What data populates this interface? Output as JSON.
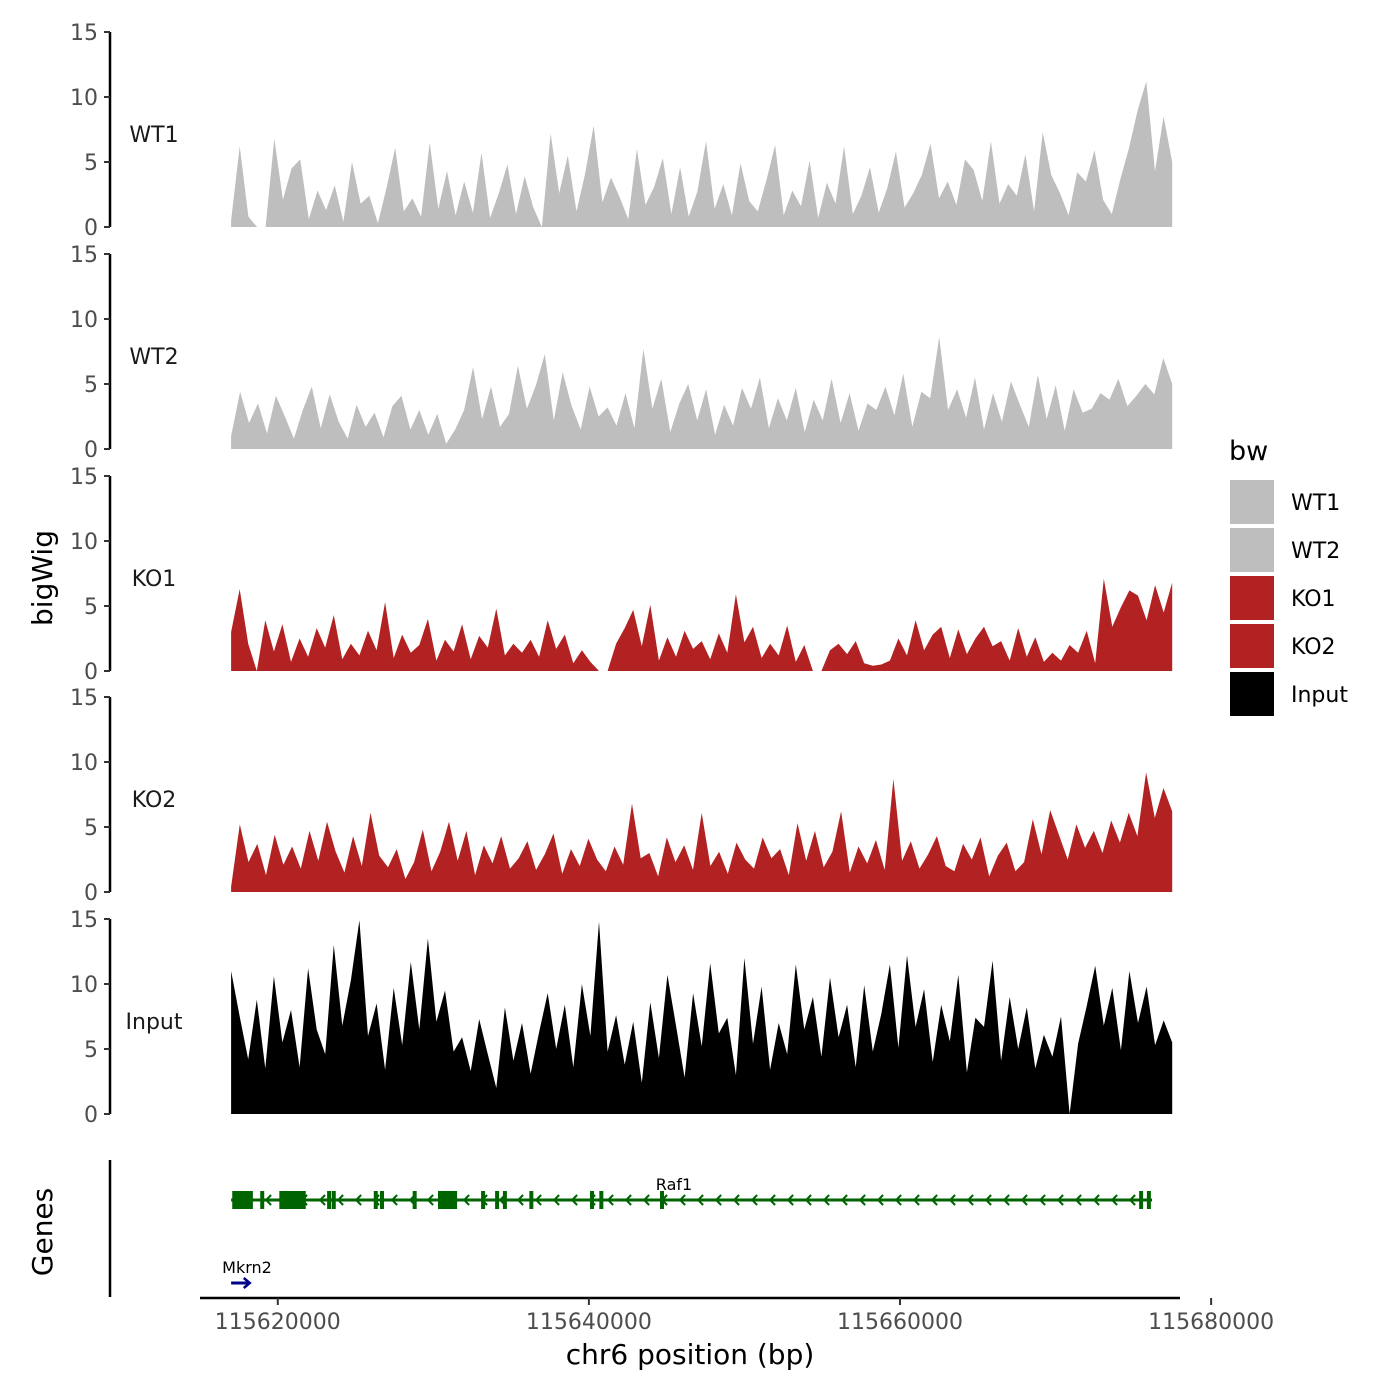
{
  "chart_data": {
    "type": "area",
    "ylabel": "bigWig",
    "xlabel": "chr6 position (bp)",
    "ylim": [
      0,
      15
    ],
    "y_ticks": [
      0,
      5,
      10,
      15
    ],
    "xlim": [
      115615000,
      115678000
    ],
    "x_ticks": [
      115620000,
      115640000,
      115660000,
      115680000
    ],
    "x_tick_labels": [
      "115620000",
      "115640000",
      "115660000",
      "115680000"
    ],
    "data_range": [
      115617000,
      115677500
    ],
    "series": [
      {
        "name": "WT1",
        "color": "#bebebe",
        "values": [
          0.5,
          6.2,
          0.8,
          0,
          0,
          6.8,
          2.1,
          4.5,
          5.2,
          0.6,
          2.8,
          1.3,
          3.2,
          0.4,
          5.0,
          1.8,
          2.4,
          0.3,
          3.0,
          6.1,
          1.2,
          2.2,
          0.8,
          6.5,
          1.4,
          4.3,
          0.9,
          3.5,
          1.1,
          5.7,
          0.7,
          2.6,
          4.8,
          1.0,
          3.9,
          1.5,
          0,
          7.2,
          2.6,
          5.5,
          1.2,
          4.1,
          7.8,
          1.9,
          3.8,
          2.3,
          0.6,
          6.0,
          1.7,
          3.1,
          5.3,
          1.0,
          4.6,
          0.8,
          2.7,
          6.6,
          1.4,
          3.3,
          0.9,
          4.9,
          2.0,
          1.2,
          3.6,
          6.3,
          0.9,
          2.8,
          1.6,
          5.1,
          0.7,
          3.4,
          1.8,
          6.2,
          1.0,
          2.4,
          4.6,
          1.1,
          3.0,
          5.8,
          1.5,
          2.6,
          4.0,
          6.4,
          2.2,
          3.5,
          1.7,
          5.2,
          4.4,
          2.0,
          6.6,
          1.8,
          3.3,
          2.4,
          5.6,
          1.2,
          7.3,
          4.0,
          2.6,
          0.9,
          4.2,
          3.5,
          5.9,
          2.1,
          1.0,
          3.7,
          6.1,
          9.0,
          11.2,
          4.3,
          8.5,
          5.0
        ]
      },
      {
        "name": "WT2",
        "color": "#bebebe",
        "values": [
          1.0,
          4.4,
          2.0,
          3.5,
          1.2,
          4.1,
          2.5,
          0.8,
          3.0,
          4.8,
          1.6,
          4.2,
          2.1,
          0.8,
          3.4,
          1.7,
          2.8,
          0.9,
          3.3,
          4.1,
          1.5,
          3.0,
          1.1,
          2.7,
          0.4,
          1.5,
          3.0,
          6.3,
          2.3,
          4.8,
          1.7,
          2.7,
          6.4,
          3.1,
          4.9,
          7.3,
          2.2,
          5.9,
          3.3,
          1.5,
          4.8,
          2.5,
          3.2,
          1.8,
          4.3,
          1.6,
          7.7,
          3.1,
          5.4,
          1.3,
          3.5,
          5.0,
          2.2,
          4.6,
          1.1,
          3.4,
          1.8,
          4.7,
          3.1,
          5.5,
          1.6,
          3.9,
          2.2,
          4.7,
          1.3,
          3.8,
          2.2,
          5.4,
          2.0,
          4.3,
          1.4,
          3.5,
          3.0,
          4.8,
          2.6,
          5.8,
          1.7,
          4.4,
          3.9,
          8.6,
          3.0,
          4.6,
          2.4,
          5.5,
          1.5,
          4.3,
          2.1,
          5.2,
          3.4,
          1.7,
          5.7,
          2.3,
          4.9,
          1.4,
          4.6,
          2.8,
          3.1,
          4.3,
          3.8,
          5.4,
          3.3,
          4.1,
          5.0,
          4.2,
          7.0,
          5.0
        ]
      },
      {
        "name": "KO1",
        "color": "#b22222",
        "values": [
          3.0,
          6.3,
          2.1,
          0,
          3.9,
          1.5,
          3.6,
          0.7,
          2.5,
          1.1,
          3.3,
          1.8,
          4.3,
          0.9,
          2.1,
          1.2,
          3.1,
          1.6,
          5.3,
          1.0,
          2.8,
          1.4,
          2.0,
          4.0,
          0.8,
          2.4,
          1.5,
          3.6,
          0.9,
          2.7,
          1.8,
          4.8,
          1.2,
          2.1,
          1.4,
          2.4,
          1.1,
          3.9,
          1.7,
          2.8,
          0.6,
          1.6,
          0.7,
          0,
          0,
          2.1,
          3.3,
          4.7,
          1.9,
          5.1,
          0.8,
          2.6,
          1.1,
          3.1,
          1.7,
          2.3,
          0.9,
          2.9,
          1.4,
          5.9,
          2.2,
          3.4,
          1.0,
          2.1,
          1.2,
          3.5,
          0.7,
          2.0,
          0,
          0,
          1.6,
          2.1,
          1.3,
          2.3,
          0.6,
          0.4,
          0.5,
          0.8,
          2.5,
          1.2,
          3.9,
          1.6,
          2.8,
          3.4,
          1.0,
          3.2,
          1.3,
          2.5,
          3.4,
          1.9,
          2.3,
          0.8,
          3.3,
          1.1,
          2.6,
          0.7,
          1.4,
          0.8,
          2.0,
          1.4,
          3.1,
          0.6,
          7.1,
          3.4,
          4.9,
          6.2,
          5.8,
          3.9,
          6.6,
          4.5,
          6.8
        ]
      },
      {
        "name": "KO2",
        "color": "#b22222",
        "values": [
          0.4,
          5.2,
          2.3,
          3.7,
          1.3,
          4.4,
          2.1,
          3.5,
          1.8,
          4.7,
          2.4,
          5.4,
          3.1,
          1.5,
          4.3,
          2.0,
          6.1,
          2.8,
          1.9,
          3.3,
          1.0,
          2.3,
          4.8,
          1.6,
          3.1,
          5.4,
          2.4,
          4.7,
          1.3,
          3.6,
          2.2,
          4.3,
          1.8,
          2.6,
          3.9,
          1.7,
          2.9,
          4.5,
          1.4,
          3.3,
          2.0,
          4.1,
          2.5,
          1.6,
          3.5,
          2.1,
          6.8,
          2.6,
          3.0,
          1.2,
          4.2,
          2.3,
          3.6,
          1.7,
          6.1,
          2.0,
          3.1,
          1.4,
          3.8,
          2.5,
          1.8,
          4.2,
          2.6,
          3.3,
          1.3,
          5.3,
          2.4,
          4.7,
          1.9,
          3.1,
          6.2,
          1.5,
          3.5,
          2.2,
          4.0,
          1.7,
          8.7,
          2.4,
          3.9,
          1.8,
          2.9,
          4.3,
          2.0,
          1.6,
          3.7,
          2.5,
          4.2,
          1.2,
          2.8,
          3.8,
          1.6,
          2.3,
          5.6,
          2.9,
          6.3,
          4.4,
          2.5,
          5.2,
          3.4,
          4.7,
          3.0,
          5.5,
          3.8,
          6.1,
          4.3,
          9.2,
          5.7,
          8.0,
          6.2
        ]
      },
      {
        "name": "Input",
        "color": "#000000",
        "values": [
          11.0,
          7.5,
          4.2,
          8.8,
          3.5,
          10.6,
          5.5,
          8.0,
          3.6,
          11.2,
          6.5,
          4.6,
          13.0,
          6.8,
          10.3,
          14.9,
          6.0,
          8.5,
          3.4,
          9.7,
          5.3,
          11.7,
          6.5,
          13.5,
          7.1,
          9.5,
          4.8,
          5.9,
          3.3,
          7.3,
          4.6,
          2.0,
          8.2,
          4.1,
          7.0,
          3.1,
          6.3,
          9.3,
          5.0,
          8.4,
          3.6,
          10.0,
          6.0,
          14.8,
          4.8,
          7.6,
          3.8,
          7.1,
          2.4,
          8.6,
          4.3,
          10.7,
          6.8,
          2.8,
          9.3,
          5.2,
          11.6,
          6.2,
          7.4,
          3.0,
          12.0,
          5.4,
          9.8,
          3.4,
          7.0,
          4.6,
          11.5,
          6.5,
          9.0,
          4.4,
          10.5,
          5.9,
          8.4,
          3.6,
          9.9,
          4.8,
          7.7,
          11.5,
          5.1,
          12.2,
          6.7,
          9.6,
          4.0,
          8.4,
          5.6,
          10.7,
          3.2,
          7.4,
          6.7,
          11.8,
          4.1,
          9.0,
          5.0,
          8.2,
          3.5,
          6.1,
          4.4,
          7.5,
          0,
          5.4,
          8.3,
          11.4,
          6.8,
          9.7,
          4.9,
          11.0,
          7.0,
          9.8,
          5.3,
          7.2,
          5.5
        ]
      }
    ],
    "legend": {
      "title": "bw",
      "entries": [
        {
          "label": "WT1",
          "color": "#bebebe"
        },
        {
          "label": "WT2",
          "color": "#bebebe"
        },
        {
          "label": "KO1",
          "color": "#b22222"
        },
        {
          "label": "KO2",
          "color": "#b22222"
        },
        {
          "label": "Input",
          "color": "#000000"
        }
      ]
    },
    "genes_track": {
      "title": "Genes",
      "genes": [
        {
          "name": "Raf1",
          "strand": "-",
          "start": 115617000,
          "end": 115676200,
          "color": "#006400",
          "exons": [
            115617200,
            115618200,
            115619000,
            115620300,
            115620800,
            115621600,
            115623300,
            115623600,
            115626300,
            115626700,
            115628800,
            115630800,
            115631400,
            115633200,
            115634100,
            115634600,
            115636300,
            115640200,
            115640800,
            115644700,
            115675500,
            115676000
          ],
          "big_exons": [
            [
              115617200,
              115618400
            ],
            [
              115620100,
              115621800
            ],
            [
              115630300,
              115631400
            ]
          ]
        },
        {
          "name": "Mkrn2",
          "strand": "+",
          "start": 115617000,
          "end": 115618200,
          "color": "#00008b"
        }
      ]
    }
  }
}
